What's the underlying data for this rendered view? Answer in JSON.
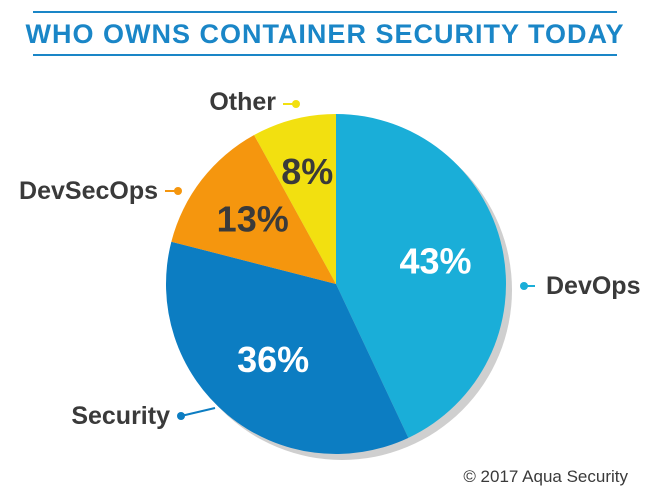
{
  "chart_data": {
    "type": "pie",
    "title": "WHO OWNS CONTAINER SECURITY TODAY",
    "categories": [
      "DevOps",
      "Security",
      "DevSecOps",
      "Other"
    ],
    "values": [
      43,
      36,
      13,
      8
    ],
    "value_labels": [
      "43%",
      "36%",
      "13%",
      "8%"
    ],
    "colors": [
      "#1AAED8",
      "#0C7DC2",
      "#F5960E",
      "#F2E010"
    ],
    "label_text_colors": [
      "#ffffff",
      "#ffffff",
      "#3a3a3a",
      "#3a3a3a"
    ],
    "start_angle_deg": 0,
    "direction": "clockwise",
    "legend": "callout-labels"
  },
  "title_color": "#1A86C7",
  "rule_color": "#1A86C7",
  "footer": {
    "copyright": "© 2017 Aqua Security"
  }
}
